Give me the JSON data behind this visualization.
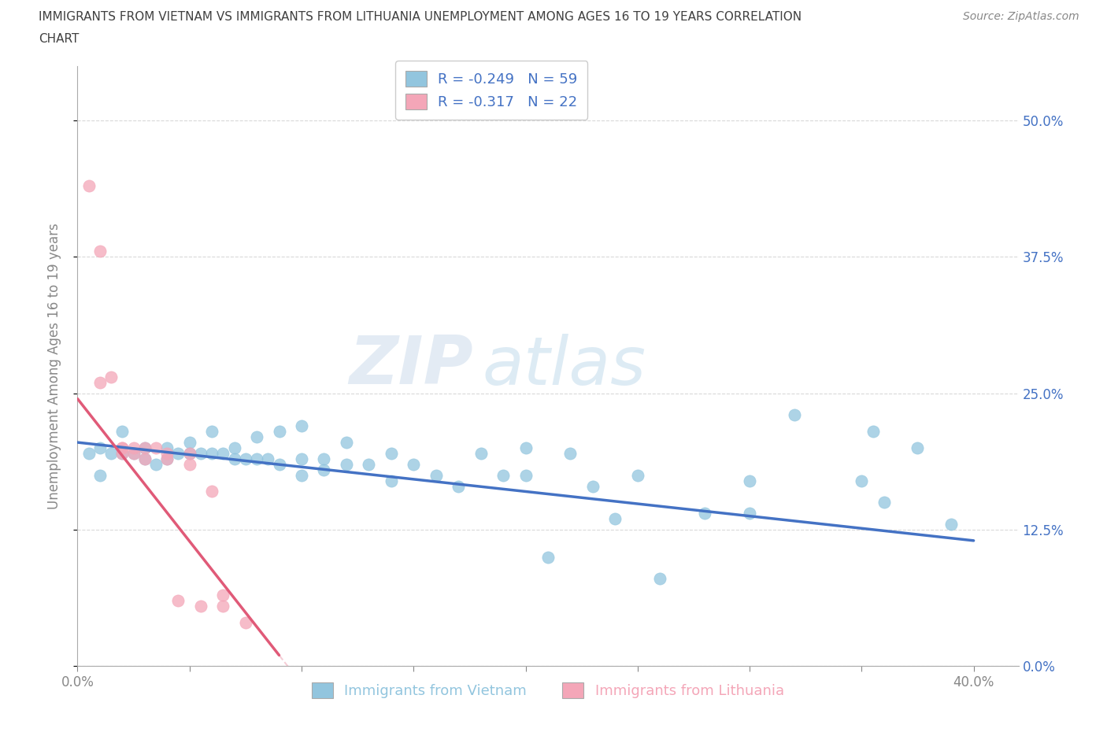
{
  "title_line1": "IMMIGRANTS FROM VIETNAM VS IMMIGRANTS FROM LITHUANIA UNEMPLOYMENT AMONG AGES 16 TO 19 YEARS CORRELATION",
  "title_line2": "CHART",
  "source": "Source: ZipAtlas.com",
  "ylabel": "Unemployment Among Ages 16 to 19 years",
  "xlim": [
    0.0,
    0.42
  ],
  "ylim": [
    0.0,
    0.55
  ],
  "yticks": [
    0.0,
    0.125,
    0.25,
    0.375,
    0.5
  ],
  "ytick_labels": [
    "0.0%",
    "12.5%",
    "25.0%",
    "37.5%",
    "50.0%"
  ],
  "xticks": [
    0.0,
    0.05,
    0.1,
    0.15,
    0.2,
    0.25,
    0.3,
    0.35,
    0.4
  ],
  "xtick_labels_show": [
    "0.0%",
    "",
    "",
    "",
    "",
    "",
    "",
    "",
    "40.0%"
  ],
  "legend_label1": "R = -0.249   N = 59",
  "legend_label2": "R = -0.317   N = 22",
  "legend_label_bottom1": "Immigrants from Vietnam",
  "legend_label_bottom2": "Immigrants from Lithuania",
  "color_vietnam": "#92c5de",
  "color_lithuania": "#f4a6b8",
  "trendline_color_vietnam": "#4472c4",
  "trendline_color_lithuania": "#e05a78",
  "background_color": "#ffffff",
  "grid_color": "#d0d0d0",
  "title_color": "#404040",
  "axis_color": "#888888",
  "blue_tick_color": "#4472c4",
  "vietnam_x": [
    0.005,
    0.01,
    0.01,
    0.015,
    0.02,
    0.02,
    0.025,
    0.03,
    0.03,
    0.035,
    0.04,
    0.04,
    0.045,
    0.05,
    0.05,
    0.055,
    0.06,
    0.06,
    0.065,
    0.07,
    0.07,
    0.075,
    0.08,
    0.08,
    0.085,
    0.09,
    0.09,
    0.1,
    0.1,
    0.1,
    0.11,
    0.11,
    0.12,
    0.12,
    0.13,
    0.14,
    0.14,
    0.15,
    0.16,
    0.17,
    0.18,
    0.19,
    0.2,
    0.2,
    0.21,
    0.22,
    0.23,
    0.24,
    0.25,
    0.26,
    0.28,
    0.3,
    0.3,
    0.32,
    0.35,
    0.355,
    0.36,
    0.375,
    0.39
  ],
  "vietnam_y": [
    0.195,
    0.2,
    0.175,
    0.195,
    0.215,
    0.195,
    0.195,
    0.2,
    0.19,
    0.185,
    0.2,
    0.19,
    0.195,
    0.205,
    0.195,
    0.195,
    0.215,
    0.195,
    0.195,
    0.2,
    0.19,
    0.19,
    0.21,
    0.19,
    0.19,
    0.215,
    0.185,
    0.22,
    0.19,
    0.175,
    0.19,
    0.18,
    0.205,
    0.185,
    0.185,
    0.195,
    0.17,
    0.185,
    0.175,
    0.165,
    0.195,
    0.175,
    0.2,
    0.175,
    0.1,
    0.195,
    0.165,
    0.135,
    0.175,
    0.08,
    0.14,
    0.14,
    0.17,
    0.23,
    0.17,
    0.215,
    0.15,
    0.2,
    0.13
  ],
  "lithuania_x": [
    0.005,
    0.01,
    0.01,
    0.015,
    0.02,
    0.02,
    0.02,
    0.025,
    0.025,
    0.03,
    0.03,
    0.035,
    0.04,
    0.04,
    0.045,
    0.05,
    0.05,
    0.055,
    0.06,
    0.065,
    0.065,
    0.075
  ],
  "lithuania_y": [
    0.44,
    0.38,
    0.26,
    0.265,
    0.2,
    0.195,
    0.2,
    0.195,
    0.2,
    0.2,
    0.19,
    0.2,
    0.195,
    0.19,
    0.06,
    0.195,
    0.185,
    0.055,
    0.16,
    0.055,
    0.065,
    0.04
  ],
  "trend_v_x0": 0.0,
  "trend_v_x1": 0.4,
  "trend_v_y0": 0.205,
  "trend_v_y1": 0.115,
  "trend_l_x0": 0.0,
  "trend_l_x1": 0.09,
  "trend_l_y0": 0.245,
  "trend_l_y1": 0.01
}
